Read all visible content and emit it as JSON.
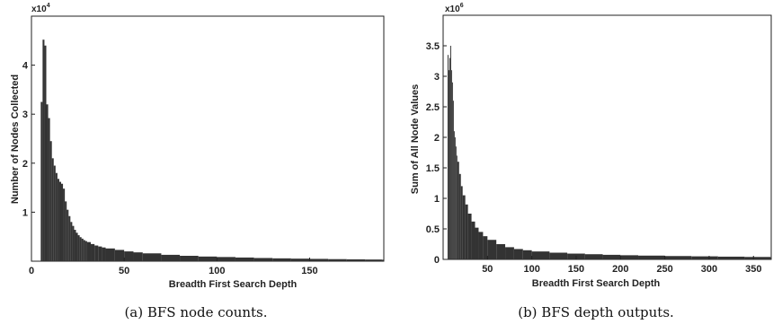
{
  "chart_data": [
    {
      "type": "bar",
      "caption": "(a) BFS node counts.",
      "xlabel": "Breadth First Search Depth",
      "ylabel": "Number of Nodes Collected",
      "exponent_base": "x10",
      "exponent_power": "4",
      "xlim": [
        0,
        190
      ],
      "ylim": [
        0,
        5
      ],
      "xticks": [
        "0",
        "50",
        "100",
        "150"
      ],
      "yticks": [
        "1",
        "2",
        "3",
        "4"
      ],
      "xtick_values": [
        0,
        50,
        100,
        150
      ],
      "ytick_values": [
        1,
        2,
        3,
        4
      ],
      "color": "#333333",
      "bars": {
        "x": [
          5,
          6,
          7,
          8,
          9,
          10,
          11,
          12,
          13,
          14,
          15,
          16,
          17,
          18,
          19,
          20,
          21,
          22,
          23,
          24,
          25,
          26,
          27,
          28,
          29,
          30,
          32,
          34,
          36,
          38,
          40,
          45,
          50,
          55,
          60,
          70,
          80,
          90,
          100,
          110,
          120,
          130,
          140,
          150,
          160,
          170,
          180,
          189
        ],
        "y": [
          3.25,
          4.52,
          4.4,
          3.2,
          2.92,
          2.45,
          2.1,
          1.95,
          1.8,
          1.68,
          1.62,
          1.58,
          1.48,
          1.22,
          1.05,
          0.92,
          0.8,
          0.72,
          0.64,
          0.58,
          0.53,
          0.49,
          0.46,
          0.43,
          0.41,
          0.39,
          0.35,
          0.32,
          0.3,
          0.28,
          0.26,
          0.23,
          0.2,
          0.18,
          0.16,
          0.13,
          0.11,
          0.095,
          0.085,
          0.075,
          0.065,
          0.058,
          0.052,
          0.047,
          0.042,
          0.038,
          0.034,
          0.03
        ]
      }
    },
    {
      "type": "bar",
      "caption": "(b) BFS depth outputs.",
      "xlabel": "Breadth First Search Depth",
      "ylabel": "Sum of All Node Values",
      "exponent_base": "x10",
      "exponent_power": "6",
      "xlim": [
        0,
        370
      ],
      "ylim": [
        0,
        4
      ],
      "xticks": [
        "50",
        "100",
        "150",
        "200",
        "250",
        "300",
        "350"
      ],
      "yticks": [
        "0",
        "0.5",
        "1",
        "1.5",
        "2",
        "2.5",
        "3",
        "3.5"
      ],
      "xtick_values": [
        50,
        100,
        150,
        200,
        250,
        300,
        350
      ],
      "ytick_values": [
        0,
        0.5,
        1,
        1.5,
        2,
        2.5,
        3,
        3.5
      ],
      "color": "#333333",
      "bars": {
        "x": [
          5,
          6,
          7,
          8,
          9,
          10,
          11,
          12,
          13,
          14,
          15,
          16,
          18,
          20,
          22,
          25,
          28,
          32,
          36,
          40,
          45,
          50,
          60,
          70,
          80,
          90,
          100,
          120,
          140,
          160,
          180,
          200,
          220,
          250,
          280,
          310,
          340,
          369
        ],
        "y": [
          3.35,
          3.1,
          3.3,
          3.5,
          3.1,
          2.9,
          2.6,
          2.1,
          2.0,
          1.85,
          1.7,
          1.6,
          1.4,
          1.2,
          1.05,
          0.9,
          0.75,
          0.62,
          0.52,
          0.45,
          0.38,
          0.32,
          0.25,
          0.2,
          0.17,
          0.15,
          0.13,
          0.11,
          0.095,
          0.085,
          0.075,
          0.068,
          0.062,
          0.055,
          0.05,
          0.045,
          0.04,
          0.036
        ]
      }
    }
  ]
}
